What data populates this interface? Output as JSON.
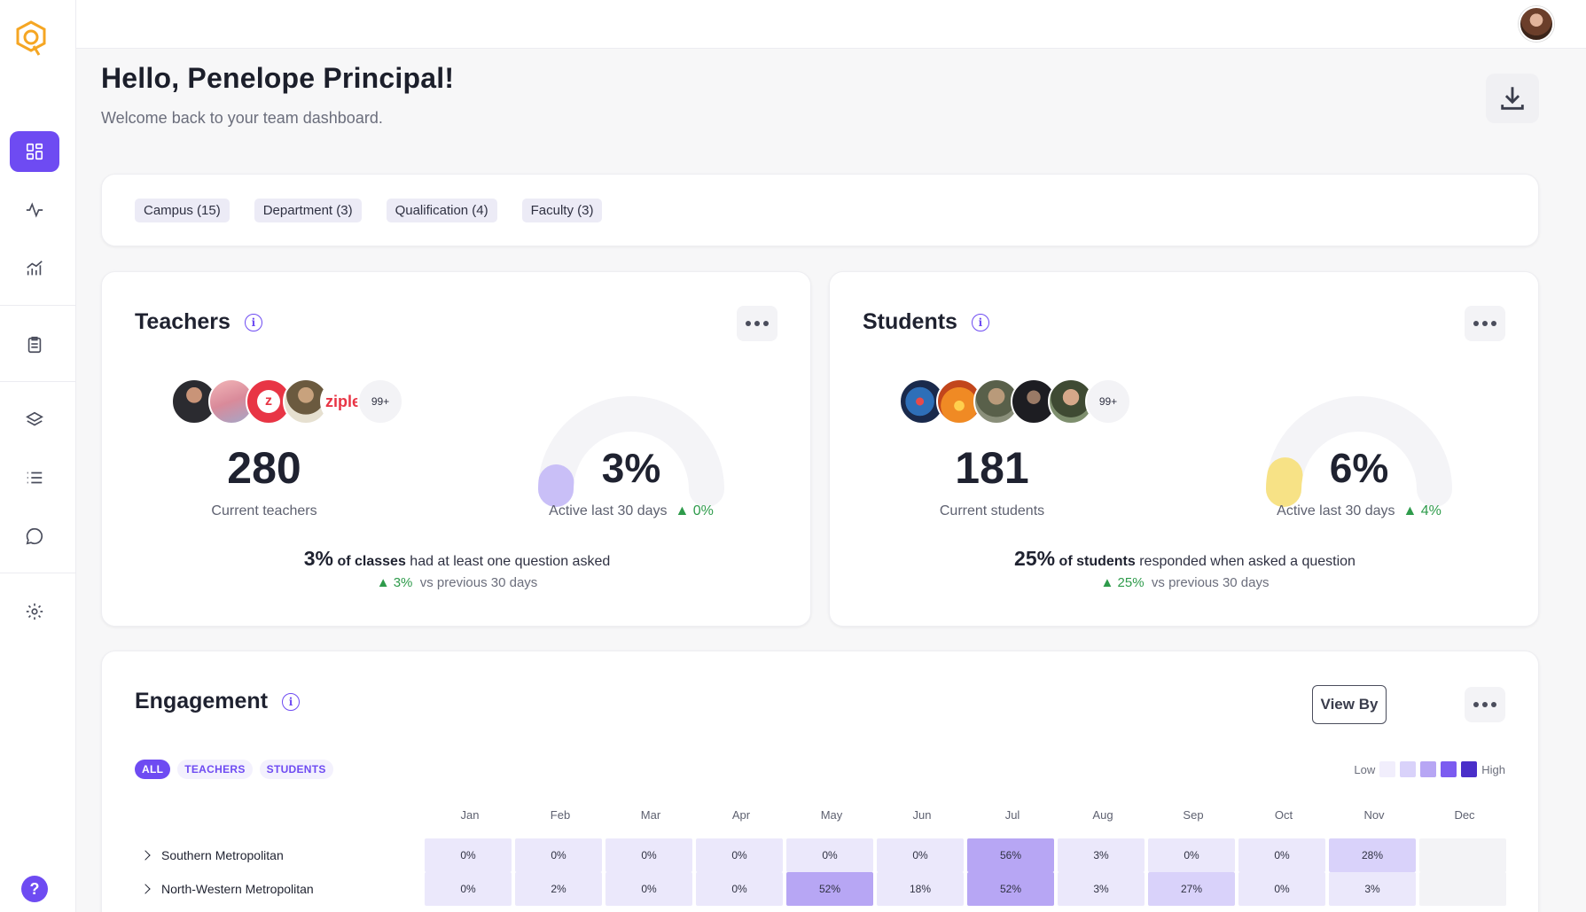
{
  "app": {
    "logo_name": "ziple-logo"
  },
  "sidebar": {
    "items": [
      {
        "name": "dashboard",
        "icon": "grid-icon",
        "active": true
      },
      {
        "name": "activity",
        "icon": "pulse-icon"
      },
      {
        "name": "analytics",
        "icon": "chart-icon"
      },
      {
        "name": "reports",
        "icon": "clipboard-icon"
      },
      {
        "name": "layers",
        "icon": "layers-icon"
      },
      {
        "name": "list",
        "icon": "list-icon"
      },
      {
        "name": "messages",
        "icon": "chat-icon"
      },
      {
        "name": "settings",
        "icon": "gear-icon"
      }
    ],
    "help_label": "?"
  },
  "header": {
    "greeting": "Hello, Penelope Principal!",
    "subtitle": "Welcome back to your team dashboard."
  },
  "filters": [
    "Campus (15)",
    "Department (3)",
    "Qualification (4)",
    "Faculty (3)"
  ],
  "teachers": {
    "title": "Teachers",
    "info": "i",
    "more_avatars": "99+",
    "count": "280",
    "count_caption": "Current teachers",
    "active_pct": "3%",
    "active_fraction": 0.03,
    "active_caption": "Active last 30 days",
    "active_change": "▲ 0%",
    "summary_pct": "3%",
    "summary_bold": "of classes",
    "summary_rest": "had at least one question asked",
    "change": "▲ 3%",
    "change_caption": "vs previous 30 days",
    "gauge_color": "#c9bff7"
  },
  "students": {
    "title": "Students",
    "info": "i",
    "more_avatars": "99+",
    "count": "181",
    "count_caption": "Current students",
    "active_pct": "6%",
    "active_fraction": 0.06,
    "active_caption": "Active last 30 days",
    "active_change": "▲ 4%",
    "summary_pct": "25%",
    "summary_bold": "of students",
    "summary_rest": "responded when asked a question",
    "change": "▲ 25%",
    "change_caption": "vs previous 30 days",
    "gauge_color": "#f7e286"
  },
  "engagement": {
    "title": "Engagement",
    "info": "i",
    "view_by": "View By",
    "tabs": [
      "ALL",
      "TEACHERS",
      "STUDENTS"
    ],
    "legend_low": "Low",
    "legend_high": "High",
    "months": [
      "Jan",
      "Feb",
      "Mar",
      "Apr",
      "May",
      "Jun",
      "Jul",
      "Aug",
      "Sep",
      "Oct",
      "Nov",
      "Dec"
    ],
    "rows": [
      {
        "label": "Southern Metropolitan",
        "values": [
          "0%",
          "0%",
          "0%",
          "0%",
          "0%",
          "0%",
          "56%",
          "3%",
          "0%",
          "0%",
          "28%",
          ""
        ]
      },
      {
        "label": "North-Western Metropolitan",
        "values": [
          "0%",
          "2%",
          "0%",
          "0%",
          "52%",
          "18%",
          "52%",
          "3%",
          "27%",
          "0%",
          "3%",
          ""
        ]
      }
    ],
    "colors": {
      "low": "#ebe8fb",
      "mid": "#d9d2fa",
      "high": "#b7a6f4",
      "empty": "#f3f3f6"
    }
  }
}
